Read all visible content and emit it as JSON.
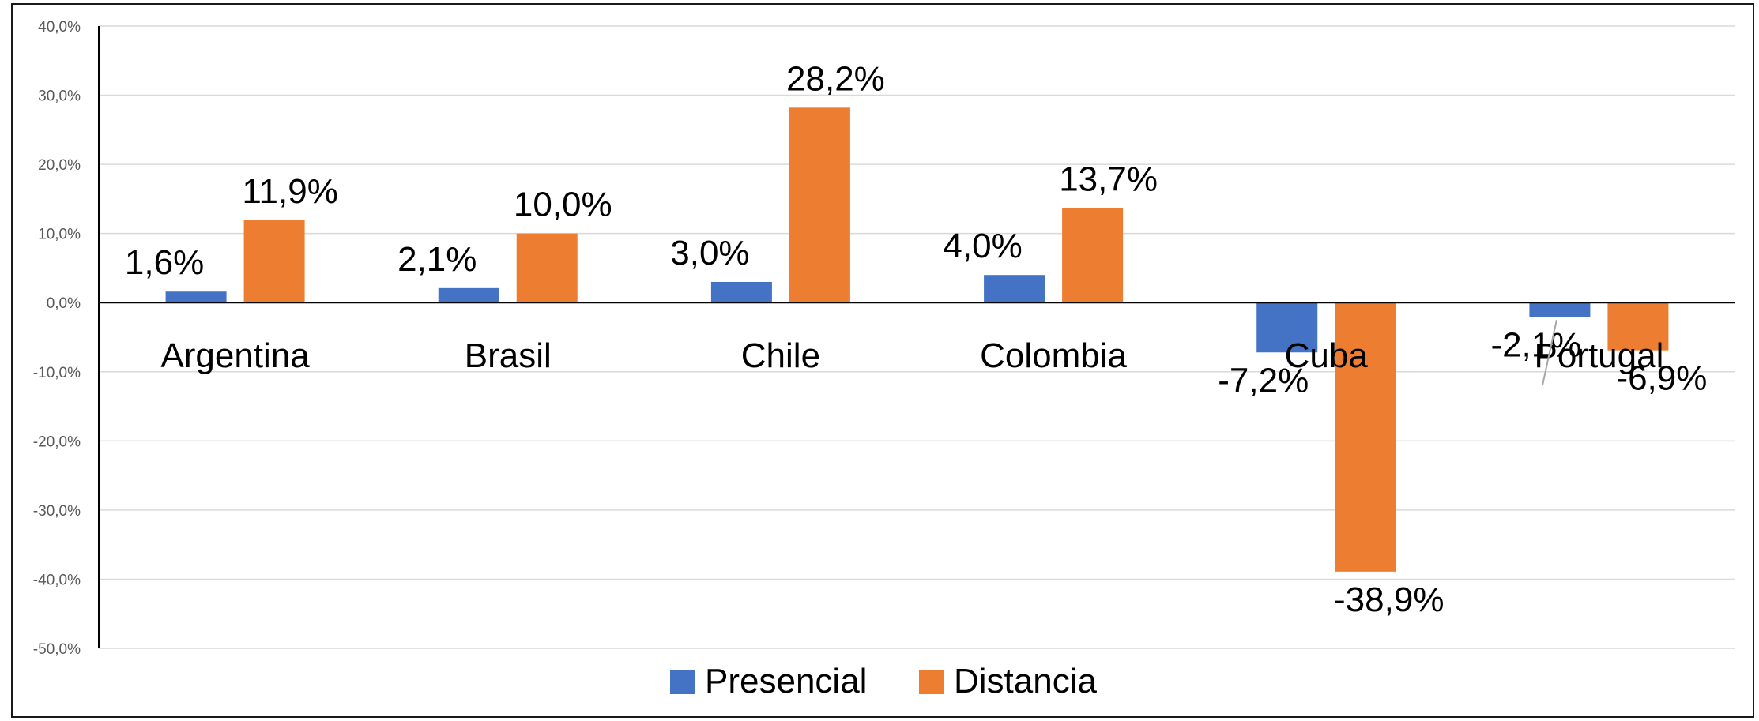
{
  "chart_data": {
    "type": "bar",
    "categories": [
      "Argentina",
      "Brasil",
      "Chile",
      "Colombia",
      "Cuba",
      "Portugal"
    ],
    "series": [
      {
        "name": "Presencial",
        "color": "#4472C4",
        "values": [
          1.6,
          2.1,
          3.0,
          4.0,
          -7.2,
          -2.1
        ],
        "labels": [
          "1,6%",
          "2,1%",
          "3,0%",
          "4,0%",
          "-7,2%",
          "-2,1%"
        ]
      },
      {
        "name": "Distancia",
        "color": "#ED7D31",
        "values": [
          11.9,
          10.0,
          28.2,
          13.7,
          -38.9,
          -6.9
        ],
        "labels": [
          "11,9%",
          "10,0%",
          "28,2%",
          "13,7%",
          "-38,9%",
          "-6,9%"
        ]
      }
    ],
    "ylim": [
      -50,
      40
    ],
    "yticks": [
      40,
      30,
      20,
      10,
      0,
      -10,
      -20,
      -30,
      -40,
      -50
    ],
    "ytick_labels": [
      "40,0%",
      "30,0%",
      "20,0%",
      "10,0%",
      "0,0%",
      "-10,0%",
      "-20,0%",
      "-30,0%",
      "-40,0%",
      "-50,0%"
    ],
    "grid": true,
    "legend_position": "bottom",
    "title": "",
    "xlabel": "",
    "ylabel": ""
  }
}
